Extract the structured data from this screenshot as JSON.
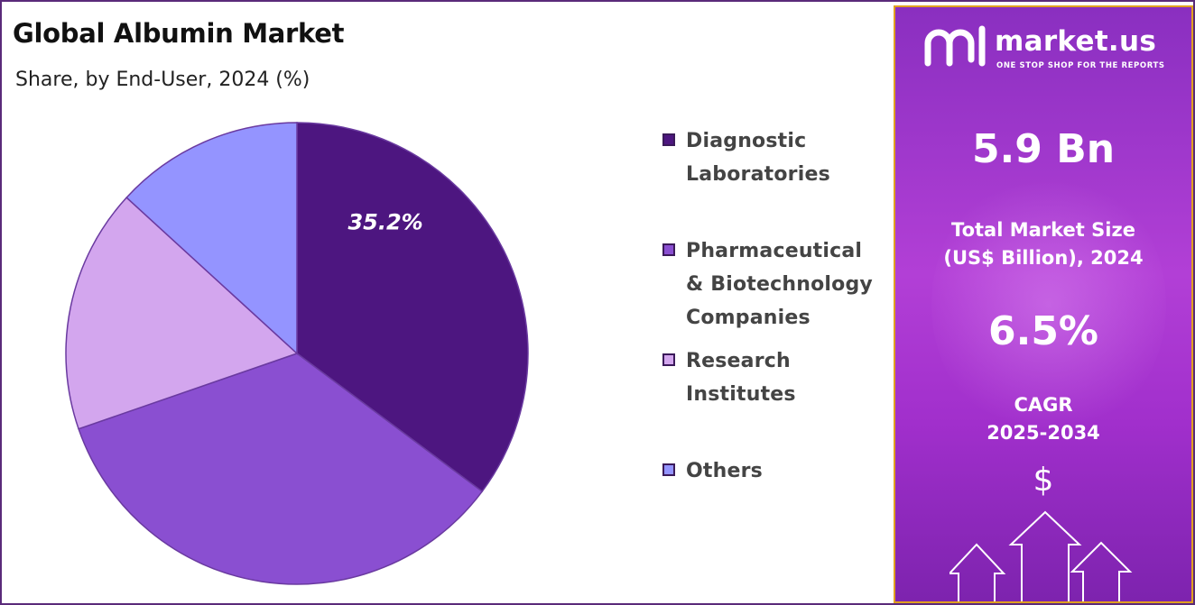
{
  "header": {
    "title": "Global Albumin Market",
    "subtitle": "Share, by End-User, 2024 (%)"
  },
  "chart_data": {
    "type": "pie",
    "title": "Global Albumin Market",
    "subtitle": "Share, by End-User, 2024 (%)",
    "start_angle_deg": 0,
    "direction": "clockwise",
    "slices": [
      {
        "label": "Diagnostic Laboratories",
        "value": 35.2,
        "color": "#4d1680",
        "data_label": "35.2%"
      },
      {
        "label": "Pharmaceutical & Biotechnology Companies",
        "value": 34.5,
        "color": "#8a4fd1",
        "data_label": ""
      },
      {
        "label": "Research Institutes",
        "value": 17.1,
        "color": "#d3a6ee",
        "data_label": ""
      },
      {
        "label": "Others",
        "value": 13.2,
        "color": "#9494ff",
        "data_label": ""
      }
    ],
    "legend_position": "right"
  },
  "legend": {
    "items": [
      {
        "lines": [
          "Diagnostic",
          "Laboratories"
        ],
        "color": "#4d1680"
      },
      {
        "lines": [
          "Pharmaceutical",
          "& Biotechnology",
          "Companies"
        ],
        "color": "#8a4fd1"
      },
      {
        "lines": [
          "Research",
          "Institutes"
        ],
        "color": "#d3a6ee"
      },
      {
        "lines": [
          "Others"
        ],
        "color": "#9494ff"
      }
    ]
  },
  "sidebar": {
    "brand": "market.us",
    "tagline": "ONE STOP SHOP FOR THE REPORTS",
    "market_size_value": "5.9 Bn",
    "market_size_label_line1": "Total Market Size",
    "market_size_label_line2": "(US$ Billion), 2024",
    "cagr_value": "6.5%",
    "cagr_label_line1": "CAGR",
    "cagr_label_line2": "2025-2034",
    "currency_symbol": "$"
  }
}
